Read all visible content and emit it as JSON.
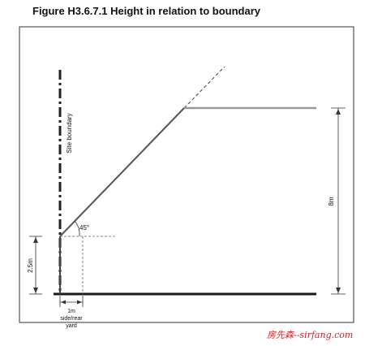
{
  "figure": {
    "title": "Figure H3.6.7.1 Height in relation to boundary",
    "labels": {
      "site_boundary": "Site boundary",
      "angle": "45°",
      "left_height": "2.5m",
      "right_height": "8m",
      "setback_line1": "1m",
      "setback_line2": "side/rear",
      "setback_line3": "yard"
    }
  },
  "watermark": "房先森--sirfang.com",
  "colors": {
    "frame": "#333333",
    "ground": "#1a1a1a",
    "envelope": "#555555",
    "height_limit": "#999999",
    "watermark": "#d02020"
  }
}
